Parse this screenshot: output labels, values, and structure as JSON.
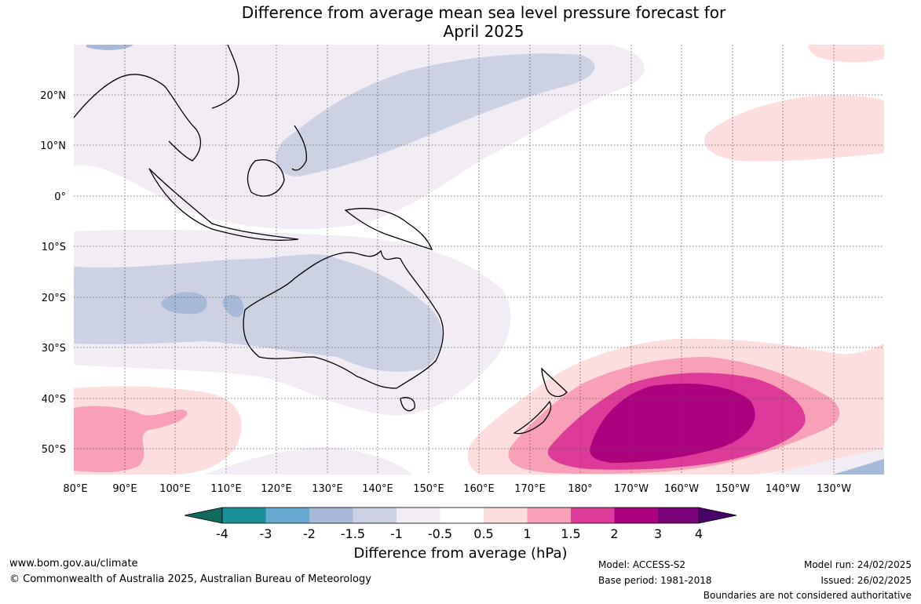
{
  "title_line1": "Difference from average mean sea level pressure forecast for",
  "title_line2": "April 2025",
  "lat_labels": [
    "20°N",
    "10°N",
    "0°",
    "10°S",
    "20°S",
    "30°S",
    "40°S",
    "50°S"
  ],
  "lon_labels": [
    "80°E",
    "90°E",
    "100°E",
    "110°E",
    "120°E",
    "130°E",
    "140°E",
    "150°E",
    "160°E",
    "170°E",
    "180°",
    "170°W",
    "160°W",
    "150°W",
    "140°W",
    "130°W"
  ],
  "colorbar": {
    "label": "Difference from average (hPa)",
    "ticks": [
      "-4",
      "-3",
      "-2",
      "-1.5",
      "-1",
      "-0.5",
      "0.5",
      "1",
      "1.5",
      "2",
      "3",
      "4"
    ],
    "colors": [
      "#0f6b5e",
      "#1a9199",
      "#67a9cf",
      "#a6b9d8",
      "#cdd1e4",
      "#f2edf5",
      "#ffffff",
      "#fddddd",
      "#f7a0b8",
      "#de3a9a",
      "#ae017e",
      "#7a0177",
      "#49006a"
    ]
  },
  "footer": {
    "website": "www.bom.gov.au/climate",
    "copyright": "© Commonwealth of Australia 2025, Australian Bureau of Meteorology",
    "model": "Model: ACCESS-S2",
    "base_period": "Base period: 1981-2018",
    "model_run": "Model run: 24/02/2025",
    "issued": "Issued: 26/02/2025",
    "disclaimer": "Boundaries are not considered authoritative"
  }
}
